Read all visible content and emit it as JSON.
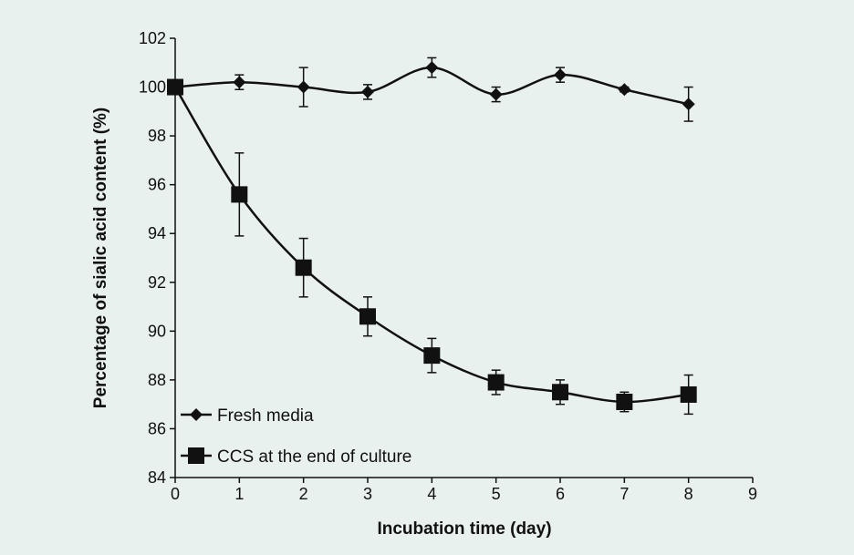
{
  "chart_data": {
    "type": "line",
    "title": "",
    "xlabel": "Incubation time (day)",
    "ylabel": "Percentage of sialic acid content (%)",
    "xlim": [
      0,
      9
    ],
    "ylim": [
      84,
      102
    ],
    "xticks": [
      0,
      1,
      2,
      3,
      4,
      5,
      6,
      7,
      8,
      9
    ],
    "yticks": [
      84,
      86,
      88,
      90,
      92,
      94,
      96,
      98,
      100,
      102
    ],
    "grid": false,
    "legend_position": "bottom-left",
    "series": [
      {
        "name": "Fresh media",
        "marker": "diamond",
        "x": [
          0,
          1,
          2,
          3,
          4,
          5,
          6,
          7,
          8
        ],
        "values": [
          100.0,
          100.2,
          100.0,
          99.8,
          100.8,
          99.7,
          100.5,
          99.9,
          99.3
        ],
        "error": [
          0,
          0.3,
          0.8,
          0.3,
          0.4,
          0.3,
          0.3,
          0.1,
          0.7
        ]
      },
      {
        "name": "CCS at the end of culture",
        "marker": "square",
        "x": [
          0,
          1,
          2,
          3,
          4,
          5,
          6,
          7,
          8
        ],
        "values": [
          100.0,
          95.6,
          92.6,
          90.6,
          89.0,
          87.9,
          87.5,
          87.1,
          87.4
        ],
        "error": [
          0,
          1.7,
          1.2,
          0.8,
          0.7,
          0.5,
          0.5,
          0.4,
          0.8
        ]
      }
    ]
  }
}
